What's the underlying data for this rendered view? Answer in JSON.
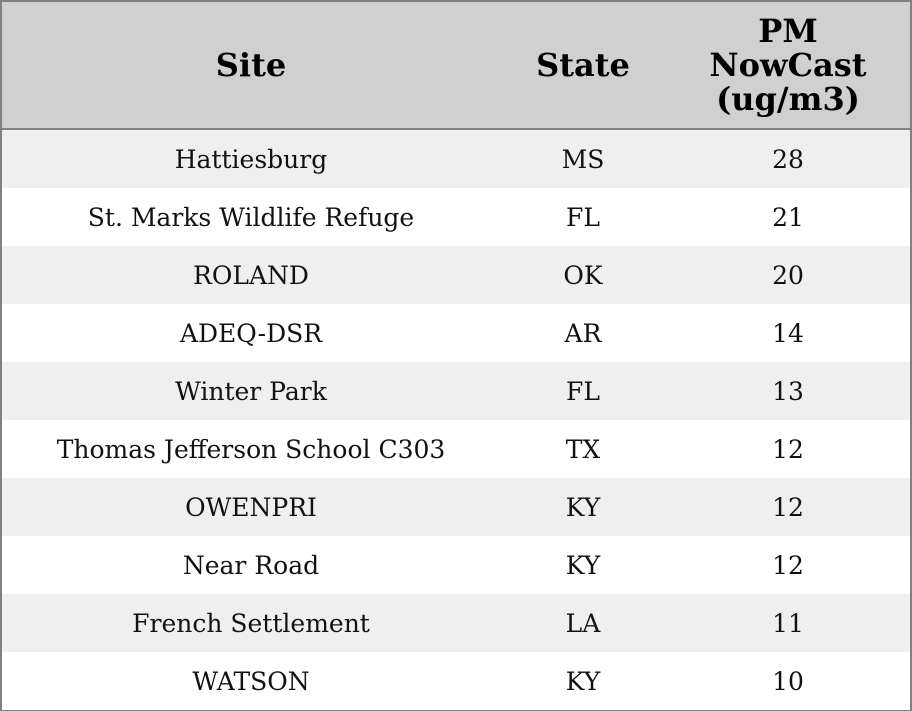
{
  "table": {
    "headers": [
      "Site",
      "State",
      "PM NowCast (ug/m3)"
    ],
    "rows": [
      [
        "Hattiesburg",
        "MS",
        28
      ],
      [
        "St. Marks Wildlife Refuge",
        "FL",
        21
      ],
      [
        "ROLAND",
        "OK",
        20
      ],
      [
        "ADEQ-DSR",
        "AR",
        14
      ],
      [
        "Winter Park",
        "FL",
        13
      ],
      [
        "Thomas Jefferson School C303",
        "TX",
        12
      ],
      [
        "OWENPRI",
        "KY",
        12
      ],
      [
        "Near Road",
        "KY",
        12
      ],
      [
        "French Settlement",
        "LA",
        11
      ],
      [
        "WATSON",
        "KY",
        10
      ]
    ]
  }
}
